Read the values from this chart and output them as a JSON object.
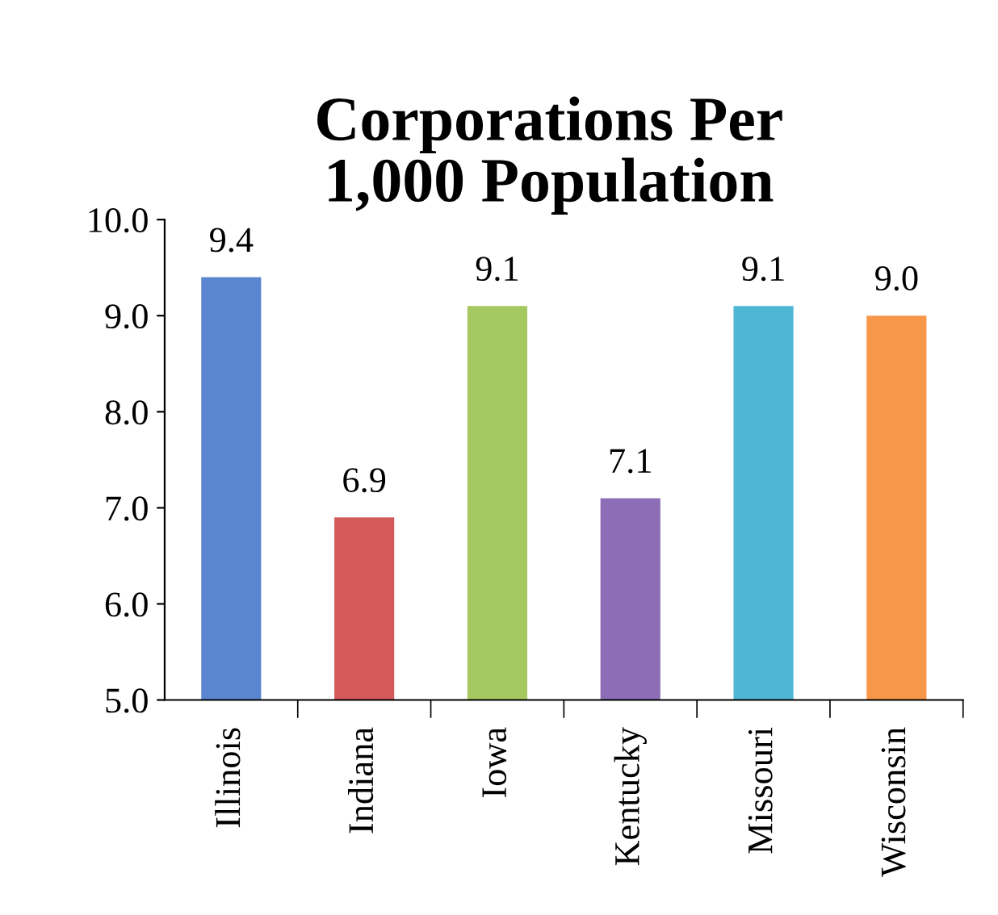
{
  "chart_data": {
    "type": "bar",
    "title": "Corporations Per\n1,000 Population",
    "categories": [
      "Illinois",
      "Indiana",
      "Iowa",
      "Kentucky",
      "Missouri",
      "Wisconsin"
    ],
    "values": [
      9.4,
      6.9,
      9.1,
      7.1,
      9.1,
      9.0
    ],
    "colors": [
      "#5b86cf",
      "#d45a5a",
      "#a6c860",
      "#8d6db5",
      "#4fb6d3",
      "#f7974a"
    ],
    "value_labels": [
      "9.4",
      "6.9",
      "9.1",
      "7.1",
      "9.1",
      "9.0"
    ],
    "ylim": [
      5,
      10
    ],
    "yticks": [
      {
        "value": 5,
        "label": "5.0"
      },
      {
        "value": 6,
        "label": "6.0"
      },
      {
        "value": 7,
        "label": "7.0"
      },
      {
        "value": 8,
        "label": "8.0"
      },
      {
        "value": 9,
        "label": "9.0"
      },
      {
        "value": 10,
        "label": "10.0"
      }
    ],
    "grid": false,
    "legend": false
  }
}
